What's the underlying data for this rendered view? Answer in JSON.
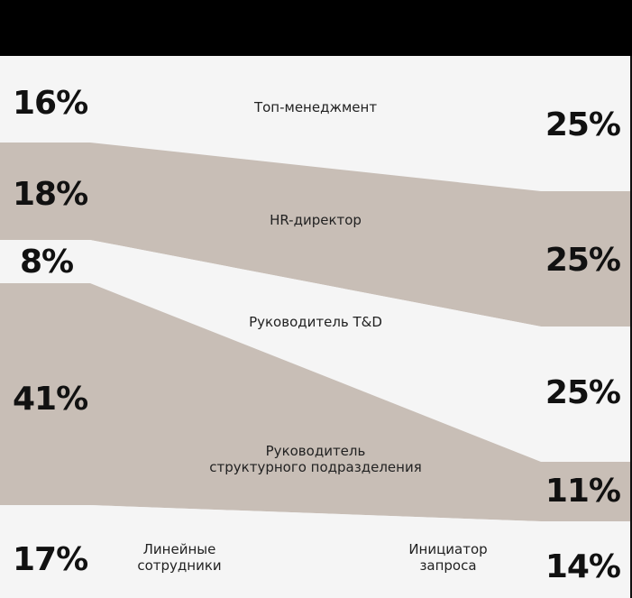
{
  "chart_data": {
    "type": "area",
    "title": "",
    "left_label": "Линейные сотрудники",
    "right_label": "Инициатор запроса",
    "categories": [
      "Топ-менеджмент",
      "HR-директор",
      "Руководитель T&D",
      "Руководитель структурного подразделения",
      "Линейные сотрудники"
    ],
    "category_label_lines": [
      [
        "Топ-менеджмент"
      ],
      [
        "HR-директор"
      ],
      [
        "Руководитель T&D"
      ],
      [
        "Руководитель",
        "структурного подразделения"
      ]
    ],
    "series": [
      {
        "values": [
          16,
          18,
          8,
          41,
          17
        ],
        "labels": [
          "16%",
          "18%",
          "8%",
          "41%",
          "17%"
        ]
      },
      {
        "values": [
          25,
          25,
          25,
          11,
          14
        ],
        "labels": [
          "25%",
          "25%",
          "25%",
          "11%",
          "14%"
        ]
      }
    ],
    "colors": {
      "band_light": "#f5f5f5",
      "band_dark": "#c8beb6",
      "header": "#000000",
      "text": "#111111"
    }
  }
}
